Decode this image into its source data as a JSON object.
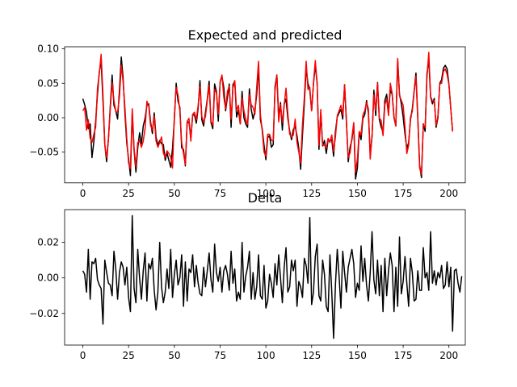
{
  "chart_data": [
    {
      "type": "line",
      "title": "Expected and predicted",
      "xlabel": "",
      "ylabel": "",
      "xlim": [
        -9.95,
        208.95
      ],
      "ylim": [
        -0.0946,
        0.103
      ],
      "x_ticks": [
        0,
        25,
        50,
        75,
        100,
        125,
        150,
        175,
        200
      ],
      "x_tick_labels": [
        "0",
        "25",
        "50",
        "75",
        "100",
        "125",
        "150",
        "175",
        "200"
      ],
      "y_ticks": [
        -0.05,
        0.0,
        0.05,
        0.1
      ],
      "y_tick_labels": [
        "−0.05",
        "0.00",
        "0.05",
        "0.10"
      ],
      "grid": false,
      "x": "0..199 step 1",
      "series": [
        {
          "color": "#000000",
          "values": [
            0.0275,
            0.019,
            0.008,
            -0.016,
            -0.009,
            -0.058,
            -0.035,
            -0.005,
            0.034,
            0.067,
            0.082,
            0.024,
            -0.039,
            -0.064,
            -0.03,
            0.017,
            0.062,
            0.018,
            0.01,
            -0.002,
            0.04,
            0.088,
            0.058,
            0.006,
            -0.037,
            -0.06,
            -0.084,
            0.007,
            -0.047,
            -0.079,
            -0.044,
            -0.022,
            -0.038,
            -0.012,
            -0.001,
            0.018,
            0.02,
            -0.006,
            -0.023,
            0.007,
            -0.028,
            -0.04,
            -0.033,
            -0.038,
            -0.039,
            -0.062,
            -0.051,
            -0.062,
            -0.072,
            -0.044,
            -0.003,
            0.05,
            0.024,
            0.015,
            -0.044,
            -0.046,
            -0.07,
            -0.007,
            -0.006,
            -0.03,
            0.004,
            0.004,
            -0.008,
            0.014,
            0.054,
            -0.003,
            -0.012,
            0.008,
            0.027,
            0.053,
            -0.007,
            -0.016,
            0.049,
            0.038,
            -0.005,
            0.052,
            0.06,
            0.044,
            0.01,
            0.03,
            0.049,
            -0.014,
            0.048,
            0.053,
            0.001,
            0.011,
            -0.009,
            0.038,
            0.0,
            -0.009,
            -0.014,
            0.042,
            0.012,
            -0.002,
            0.01,
            0.034,
            0.074,
            -0.003,
            -0.016,
            -0.04,
            -0.061,
            -0.029,
            -0.026,
            -0.043,
            -0.039,
            0.045,
            0.062,
            0.0,
            0.022,
            -0.018,
            0.02,
            0.027,
            -0.001,
            -0.019,
            -0.032,
            -0.017,
            -0.013,
            -0.026,
            -0.045,
            -0.075,
            -0.025,
            0.02,
            0.071,
            0.05,
            0.04,
            0.01,
            0.049,
            0.076,
            0.05,
            -0.046,
            0.007,
            -0.041,
            -0.033,
            -0.052,
            -0.032,
            -0.033,
            -0.032,
            -0.056,
            -0.02,
            0.001,
            0.007,
            0.012,
            -0.002,
            0.048,
            -0.004,
            -0.064,
            -0.043,
            -0.032,
            -0.01,
            -0.089,
            -0.073,
            -0.021,
            -0.032,
            -0.001,
            0.004,
            0.025,
            0.007,
            -0.052,
            -0.028,
            0.04,
            0.003,
            0.051,
            -0.003,
            -0.014,
            -0.021,
            0.025,
            0.034,
            0.008,
            0.04,
            0.034,
            0.0,
            -0.012,
            0.084,
            0.034,
            0.02,
            0.001,
            -0.024,
            -0.045,
            -0.036,
            -0.003,
            0.013,
            0.039,
            0.065,
            0.0,
            -0.069,
            -0.087,
            -0.009,
            -0.02,
            0.064,
            0.085,
            0.03,
            0.02,
            0.028,
            -0.014,
            0.0,
            0.05,
            0.055,
            0.072,
            0.076,
            0.071,
            0.049,
            0.014,
            -0.02
          ]
        },
        {
          "color": "#ff0000",
          "values": [
            0.01,
            0.015,
            -0.018,
            -0.003,
            -0.03,
            -0.036,
            -0.024,
            -0.014,
            0.043,
            0.064,
            0.092,
            0.034,
            -0.04,
            -0.058,
            -0.031,
            0.013,
            0.051,
            0.025,
            0.009,
            0.008,
            0.03,
            0.076,
            0.052,
            0.015,
            -0.03,
            -0.066,
            -0.074,
            0.013,
            -0.045,
            -0.071,
            -0.036,
            -0.033,
            -0.043,
            -0.034,
            -0.016,
            0.024,
            0.017,
            -0.011,
            -0.018,
            0.002,
            -0.034,
            -0.043,
            -0.036,
            -0.028,
            -0.051,
            -0.058,
            -0.048,
            -0.052,
            -0.057,
            -0.073,
            0.003,
            0.044,
            0.033,
            0.01,
            -0.036,
            -0.052,
            -0.068,
            -0.005,
            -0.001,
            -0.034,
            0.005,
            0.008,
            -0.003,
            0.018,
            0.045,
            0.002,
            -0.007,
            0.002,
            0.025,
            0.047,
            -0.005,
            -0.011,
            0.041,
            0.036,
            0.005,
            0.052,
            0.062,
            0.03,
            0.013,
            0.038,
            0.046,
            -0.002,
            0.043,
            0.054,
            0.01,
            0.018,
            -0.009,
            0.029,
            0.01,
            -0.002,
            -0.01,
            0.034,
            0.019,
            0.015,
            0.005,
            0.045,
            0.082,
            0.005,
            -0.019,
            -0.05,
            -0.056,
            -0.024,
            -0.024,
            -0.033,
            -0.033,
            0.04,
            0.062,
            -0.006,
            0.019,
            -0.007,
            0.018,
            0.043,
            0.006,
            -0.024,
            -0.028,
            -0.025,
            -0.002,
            -0.036,
            -0.05,
            -0.066,
            -0.009,
            0.029,
            0.082,
            0.041,
            0.044,
            0.01,
            0.05,
            0.083,
            0.05,
            -0.04,
            0.012,
            -0.04,
            -0.04,
            -0.044,
            -0.03,
            -0.036,
            -0.025,
            -0.049,
            -0.028,
            0.003,
            0.01,
            0.018,
            0.004,
            0.048,
            -0.008,
            -0.058,
            -0.051,
            -0.029,
            -0.007,
            -0.079,
            -0.06,
            -0.02,
            -0.025,
            0.004,
            0.01,
            0.022,
            0.013,
            -0.06,
            -0.026,
            0.033,
            0.01,
            0.05,
            -0.001,
            -0.004,
            -0.026,
            0.019,
            0.027,
            0.003,
            0.05,
            0.035,
            0.002,
            -0.012,
            0.086,
            0.032,
            0.025,
            0.018,
            -0.013,
            -0.052,
            -0.04,
            0.001,
            0.009,
            0.038,
            0.06,
            -0.003,
            -0.073,
            -0.082,
            -0.01,
            -0.014,
            0.058,
            0.095,
            0.031,
            0.024,
            0.025,
            -0.011,
            0.003,
            0.049,
            0.05,
            0.067,
            0.071,
            0.063,
            0.048,
            0.014,
            -0.02
          ]
        }
      ]
    },
    {
      "type": "line",
      "title": "Delta",
      "xlabel": "",
      "ylabel": "",
      "xlim": [
        -9.95,
        208.95
      ],
      "ylim": [
        -0.0378,
        0.0384
      ],
      "x_ticks": [
        0,
        25,
        50,
        75,
        100,
        125,
        150,
        175,
        200
      ],
      "x_tick_labels": [
        "0",
        "25",
        "50",
        "75",
        "100",
        "125",
        "150",
        "175",
        "200"
      ],
      "y_ticks": [
        -0.02,
        0.0,
        0.02
      ],
      "y_tick_labels": [
        "−0.02",
        "0.00",
        "0.02"
      ],
      "grid": false,
      "x": "0..199 step 1",
      "series": [
        {
          "color": "#000000",
          "values": [
            0.004,
            0.002,
            -0.008,
            0.016,
            -0.012,
            0.009,
            0.008,
            0.011,
            -0.001,
            -0.004,
            -0.006,
            -0.026,
            0.01,
            0.003,
            -0.003,
            -0.004,
            -0.01,
            0.015,
            0.005,
            -0.012,
            0.003,
            0.009,
            0.006,
            -0.004,
            0.006,
            -0.011,
            -0.019,
            0.035,
            -0.006,
            -0.014,
            0.016,
            0.0,
            -0.012,
            0.004,
            0.014,
            -0.013,
            0.008,
            0.005,
            0.011,
            -0.007,
            -0.018,
            -0.008,
            0.02,
            -0.005,
            -0.014,
            -0.008,
            0.005,
            -0.006,
            0.016,
            -0.011,
            0.002,
            0.01,
            -0.004,
            0.0,
            0.013,
            -0.016,
            0.009,
            -0.013,
            0.005,
            0.003,
            0.013,
            -0.005,
            0.007,
            -0.003,
            -0.009,
            -0.01,
            0.006,
            -0.005,
            0.004,
            0.014,
            -0.001,
            -0.008,
            0.019,
            0.003,
            -0.002,
            0.006,
            -0.008,
            0.004,
            0.007,
            0.002,
            -0.007,
            0.015,
            -0.003,
            0.005,
            -0.013,
            -0.008,
            -0.012,
            0.02,
            -0.008,
            0.001,
            0.006,
            0.015,
            -0.012,
            0.003,
            -0.012,
            -0.005,
            0.013,
            -0.01,
            -0.012,
            0.007,
            -0.017,
            -0.013,
            0.002,
            -0.003,
            -0.011,
            0.008,
            -0.004,
            0.013,
            0.0,
            -0.014,
            0.006,
            0.017,
            -0.008,
            -0.005,
            0.01,
            0.004,
            0.01,
            -0.016,
            -0.002,
            -0.005,
            -0.011,
            0.011,
            0.007,
            -0.003,
            0.034,
            -0.015,
            -0.008,
            0.012,
            0.019,
            -0.01,
            -0.013,
            0.01,
            0.002,
            -0.016,
            -0.019,
            0.013,
            -0.008,
            -0.034,
            -0.004,
            0.016,
            0.001,
            -0.017,
            0.015,
            0.003,
            -0.008,
            0.006,
            0.011,
            0.016,
            0.008,
            -0.011,
            -0.003,
            -0.007,
            0.018,
            -0.002,
            0.011,
            -0.004,
            -0.013,
            0.003,
            0.026,
            -0.001,
            -0.009,
            0.01,
            -0.01,
            0.007,
            -0.019,
            0.011,
            -0.01,
            0.004,
            0.014,
            0.007,
            -0.019,
            0.006,
            -0.016,
            0.023,
            -0.009,
            -0.002,
            0.012,
            -0.003,
            -0.016,
            0.011,
            0.003,
            -0.013,
            -0.012,
            0.004,
            -0.007,
            -0.007,
            0.017,
            0.0,
            0.003,
            -0.007,
            0.026,
            -0.003,
            0.004,
            -0.004,
            0.003,
            0.0,
            0.007,
            -0.006,
            -0.004,
            0.009,
            -0.005,
            0.006,
            -0.03,
            0.004,
            0.005,
            -0.003,
            -0.008,
            0.001
          ]
        }
      ]
    }
  ]
}
